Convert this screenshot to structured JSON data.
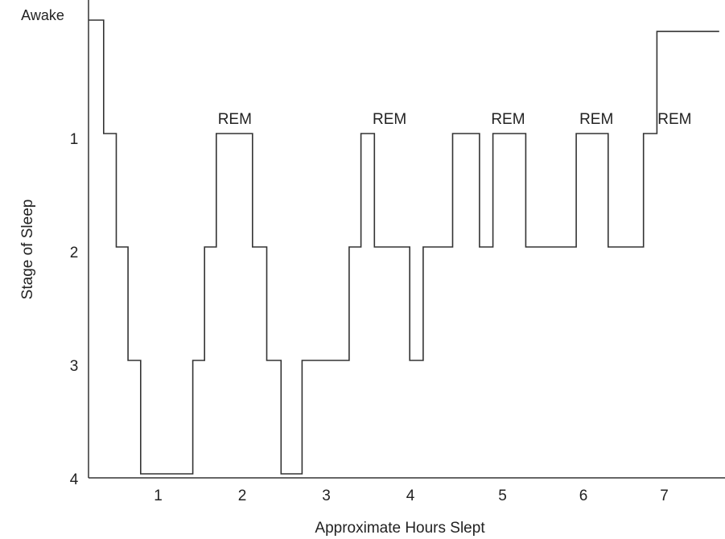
{
  "chart_data": {
    "type": "line",
    "title": "",
    "xlabel": "Approximate Hours Slept",
    "ylabel": "Stage of Sleep",
    "y_ticks": [
      {
        "value": 0,
        "label": "Awake"
      },
      {
        "value": 1,
        "label": "1"
      },
      {
        "value": 2,
        "label": "2"
      },
      {
        "value": 3,
        "label": "3"
      },
      {
        "value": 4,
        "label": "4"
      }
    ],
    "x_ticks": [
      1,
      2,
      3,
      4,
      5,
      6,
      7
    ],
    "xlim": [
      0,
      7.5
    ],
    "ylim": [
      0,
      4.6
    ],
    "y_inverted": true,
    "step": "post",
    "series": [
      {
        "x": [
          0.0,
          0.18,
          0.33,
          0.47,
          0.62,
          1.24,
          1.38,
          1.52,
          1.95,
          2.12,
          2.29,
          2.54,
          3.1,
          3.24,
          3.4,
          3.82,
          3.98,
          4.33,
          4.65,
          4.81,
          5.2,
          5.8,
          6.18,
          6.6,
          6.76,
          7.22
        ],
        "y": [
          0,
          1,
          2,
          3,
          4,
          3,
          2,
          1,
          2,
          3,
          4,
          3,
          2,
          1,
          2,
          3,
          2,
          1,
          2,
          1,
          2,
          1,
          2,
          1,
          0.1,
          0.1
        ],
        "end_x": 7.5
      }
    ],
    "annotations": [
      {
        "text": "REM",
        "x": 1.74,
        "y": 1
      },
      {
        "text": "REM",
        "x": 3.58,
        "y": 1
      },
      {
        "text": "REM",
        "x": 4.99,
        "y": 1
      },
      {
        "text": "REM",
        "x": 6.04,
        "y": 1
      },
      {
        "text": "REM",
        "x": 6.97,
        "y": 1
      }
    ],
    "grid": false,
    "colors": {
      "line": "#333333",
      "axis": "#333333",
      "text": "#222222"
    }
  }
}
